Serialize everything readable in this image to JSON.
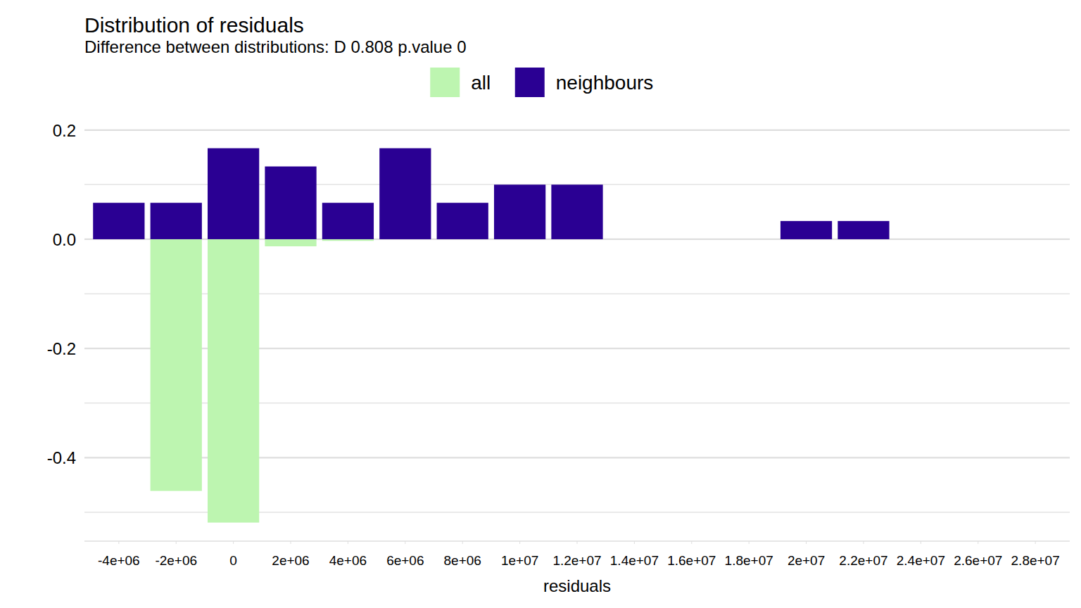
{
  "chart_data": {
    "type": "bar",
    "title": "Distribution of residuals",
    "subtitle": "Difference between distributions: D 0.808 p.value 0",
    "x_label": "residuals",
    "x": [
      -4000000,
      -2000000,
      0,
      2000000,
      4000000,
      6000000,
      8000000,
      10000000,
      12000000,
      20000000,
      22000000
    ],
    "series": [
      {
        "name": "all",
        "color": "#bdf5b0",
        "values": [
          0,
          -0.461,
          -0.519,
          -0.013,
          -0.003,
          0,
          0,
          0,
          0,
          0,
          0
        ]
      },
      {
        "name": "neighbours",
        "color": "#2a0093",
        "values": [
          0.0667,
          0.0667,
          0.1667,
          0.1333,
          0.0667,
          0.1667,
          0.0667,
          0.1,
          0.1,
          0.0333,
          0.0333
        ]
      }
    ],
    "xlim": [
      -5200000,
      29200000
    ],
    "xticks": [
      {
        "value": -4000000,
        "label": "-4e+06"
      },
      {
        "value": -2000000,
        "label": "-2e+06"
      },
      0,
      {
        "value": 2000000,
        "label": "2e+06"
      },
      {
        "value": 4000000,
        "label": "4e+06"
      },
      {
        "value": 6000000,
        "label": "6e+06"
      },
      {
        "value": 8000000,
        "label": "8e+06"
      },
      {
        "value": 10000000,
        "label": "1e+07"
      },
      {
        "value": 12000000,
        "label": "1.2e+07"
      },
      {
        "value": 14000000,
        "label": "1.4e+07"
      },
      {
        "value": 16000000,
        "label": "1.6e+07"
      },
      {
        "value": 18000000,
        "label": "1.8e+07"
      },
      {
        "value": 20000000,
        "label": "2e+07"
      },
      {
        "value": 22000000,
        "label": "2.2e+07"
      },
      {
        "value": 24000000,
        "label": "2.4e+07"
      },
      {
        "value": 26000000,
        "label": "2.6e+07"
      },
      {
        "value": 28000000,
        "label": "2.8e+07"
      }
    ],
    "ylim": [
      -0.553,
      0.201
    ],
    "yticks": [
      -0.4,
      -0.2,
      {
        "value": 0,
        "label": "0.0"
      },
      0.2
    ],
    "grid": true,
    "legend": "top"
  }
}
